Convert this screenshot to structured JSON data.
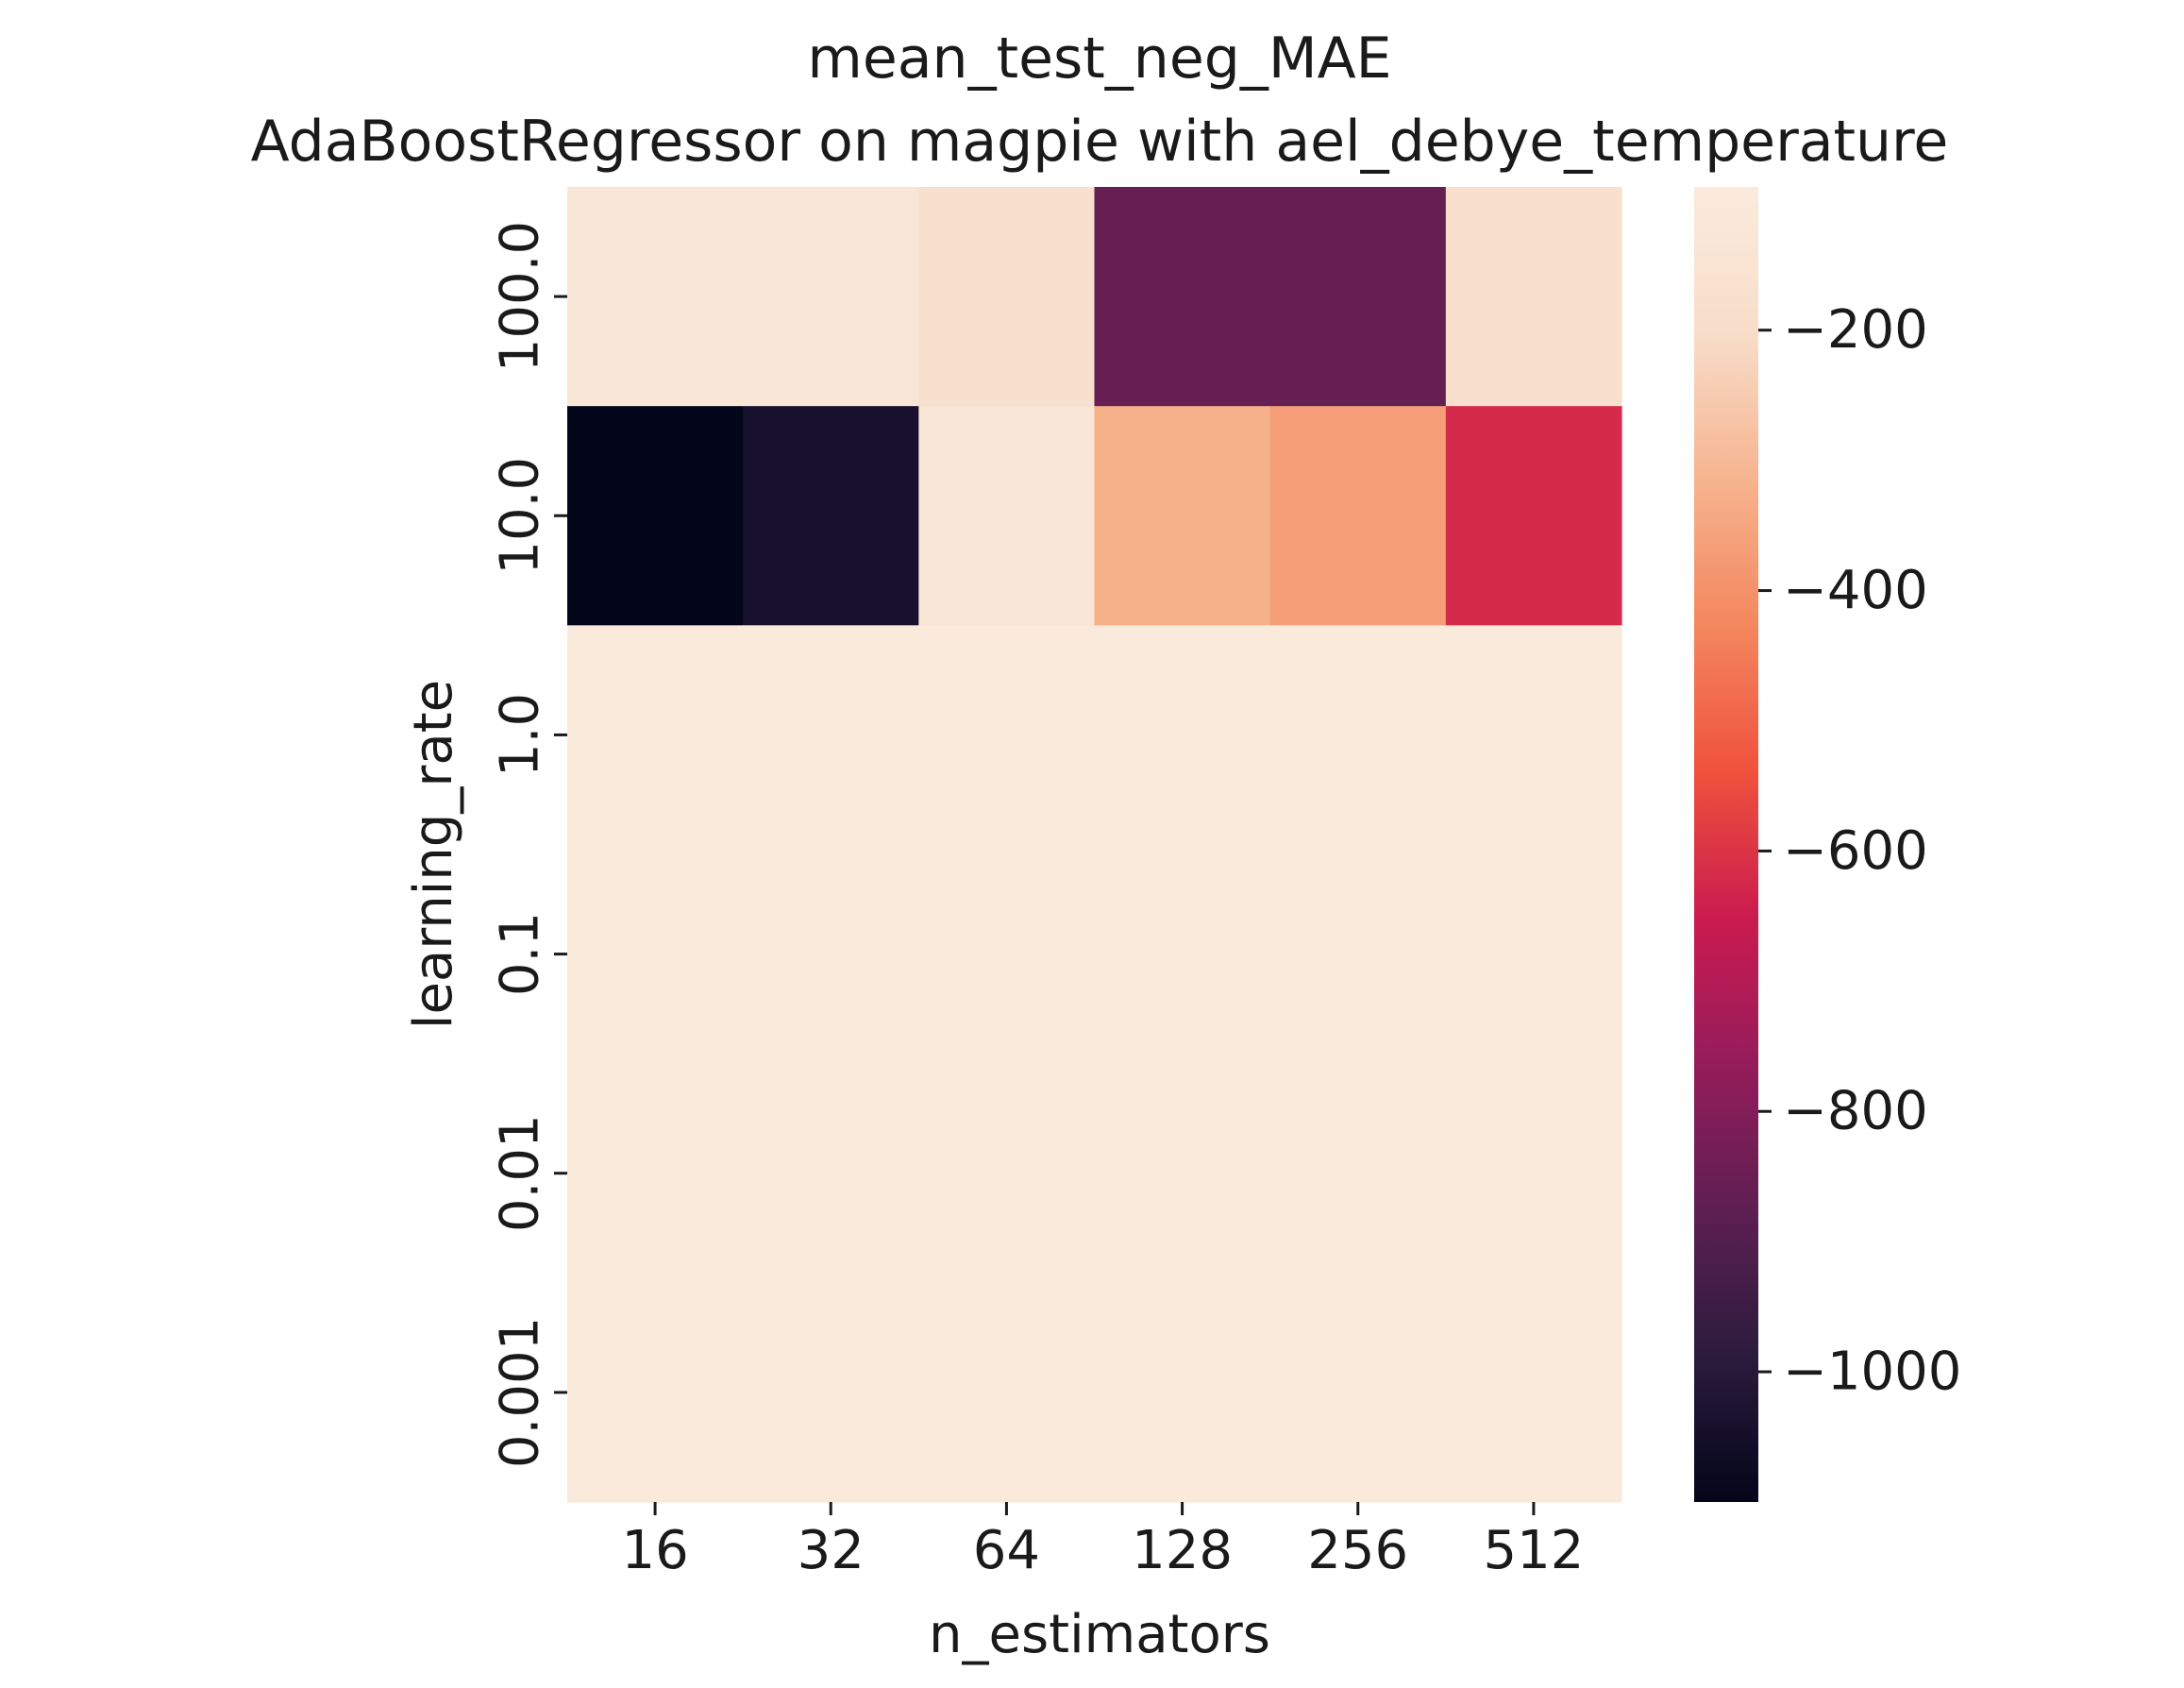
{
  "chart_data": {
    "type": "heatmap",
    "title": "mean_test_neg_MAE",
    "subtitle": "AdaBoostRegressor on magpie with ael_debye_temperature",
    "xlabel": "n_estimators",
    "ylabel": "learning_rate",
    "x_categories": [
      "16",
      "32",
      "64",
      "128",
      "256",
      "512"
    ],
    "y_categories": [
      "100.0",
      "10.0",
      "1.0",
      "0.1",
      "0.01",
      "0.001"
    ],
    "values": [
      [
        -128,
        -128,
        -175,
        -860,
        -860,
        -180
      ],
      [
        -1100,
        -1040,
        -128,
        -325,
        -370,
        -620
      ],
      [
        -100,
        -100,
        -100,
        -100,
        -100,
        -100
      ],
      [
        -100,
        -100,
        -100,
        -100,
        -100,
        -100
      ],
      [
        -100,
        -100,
        -100,
        -100,
        -100,
        -100
      ],
      [
        -100,
        -100,
        -100,
        -100,
        -100,
        -100
      ]
    ],
    "colorbar": {
      "vmin": -1100,
      "vmax": -90,
      "ticks": [
        -200,
        -400,
        -600,
        -800,
        -1000
      ],
      "tick_labels": [
        "−200",
        "−400",
        "−600",
        "−800",
        "−1000"
      ],
      "colormap": "rocket",
      "colormap_stops": [
        "#03051a",
        "#2b1b3d",
        "#5e1f52",
        "#951c5b",
        "#cb1b4f",
        "#ef523c",
        "#f4875e",
        "#f6b48f",
        "#f8ddc9",
        "#faebdd"
      ]
    },
    "grid": false
  }
}
